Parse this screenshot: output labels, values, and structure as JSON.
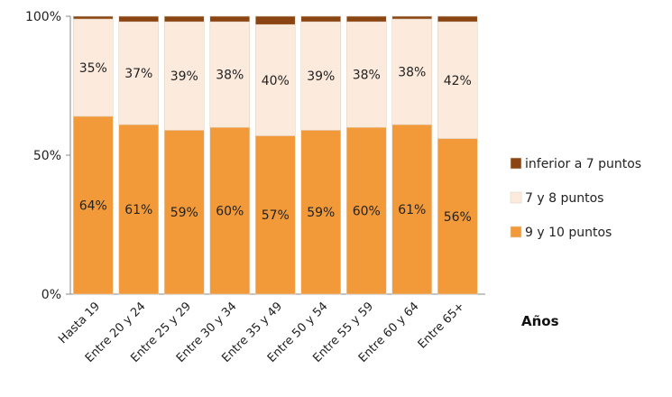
{
  "chart_data": {
    "type": "bar",
    "stacked": true,
    "title": "",
    "xlabel": "Años",
    "ylabel": "",
    "ylim": [
      0,
      100
    ],
    "yticks": [
      "0%",
      "50%",
      "100%"
    ],
    "categories": [
      "Hasta 19",
      "Entre 20 y 24",
      "Entre 25 y 29",
      "Entre 30 y 34",
      "Entre 35 y 49",
      "Entre 50 y 54",
      "Entre 55 y 59",
      "Entre 60 y 64",
      "Entre 65+"
    ],
    "series": [
      {
        "name": "9 y 10 puntos",
        "color": "#F29A3A",
        "values": [
          64,
          61,
          59,
          60,
          57,
          59,
          60,
          61,
          56
        ],
        "labels": [
          "64%",
          "61%",
          "59%",
          "60%",
          "57%",
          "59%",
          "60%",
          "61%",
          "56%"
        ]
      },
      {
        "name": "7 y 8 puntos",
        "color": "#FCEBDD",
        "values": [
          35,
          37,
          39,
          38,
          40,
          39,
          38,
          38,
          42
        ],
        "labels": [
          "35%",
          "37%",
          "39%",
          "38%",
          "40%",
          "39%",
          "38%",
          "38%",
          "42%"
        ]
      },
      {
        "name": "inferior a 7 puntos",
        "color": "#8B4513",
        "values": [
          1,
          2,
          2,
          2,
          3,
          2,
          2,
          1,
          2
        ],
        "labels": []
      }
    ],
    "legend_position": "right",
    "legend_order": [
      "inferior a 7 puntos",
      "7 y 8 puntos",
      "9 y 10 puntos"
    ],
    "grid": false
  }
}
